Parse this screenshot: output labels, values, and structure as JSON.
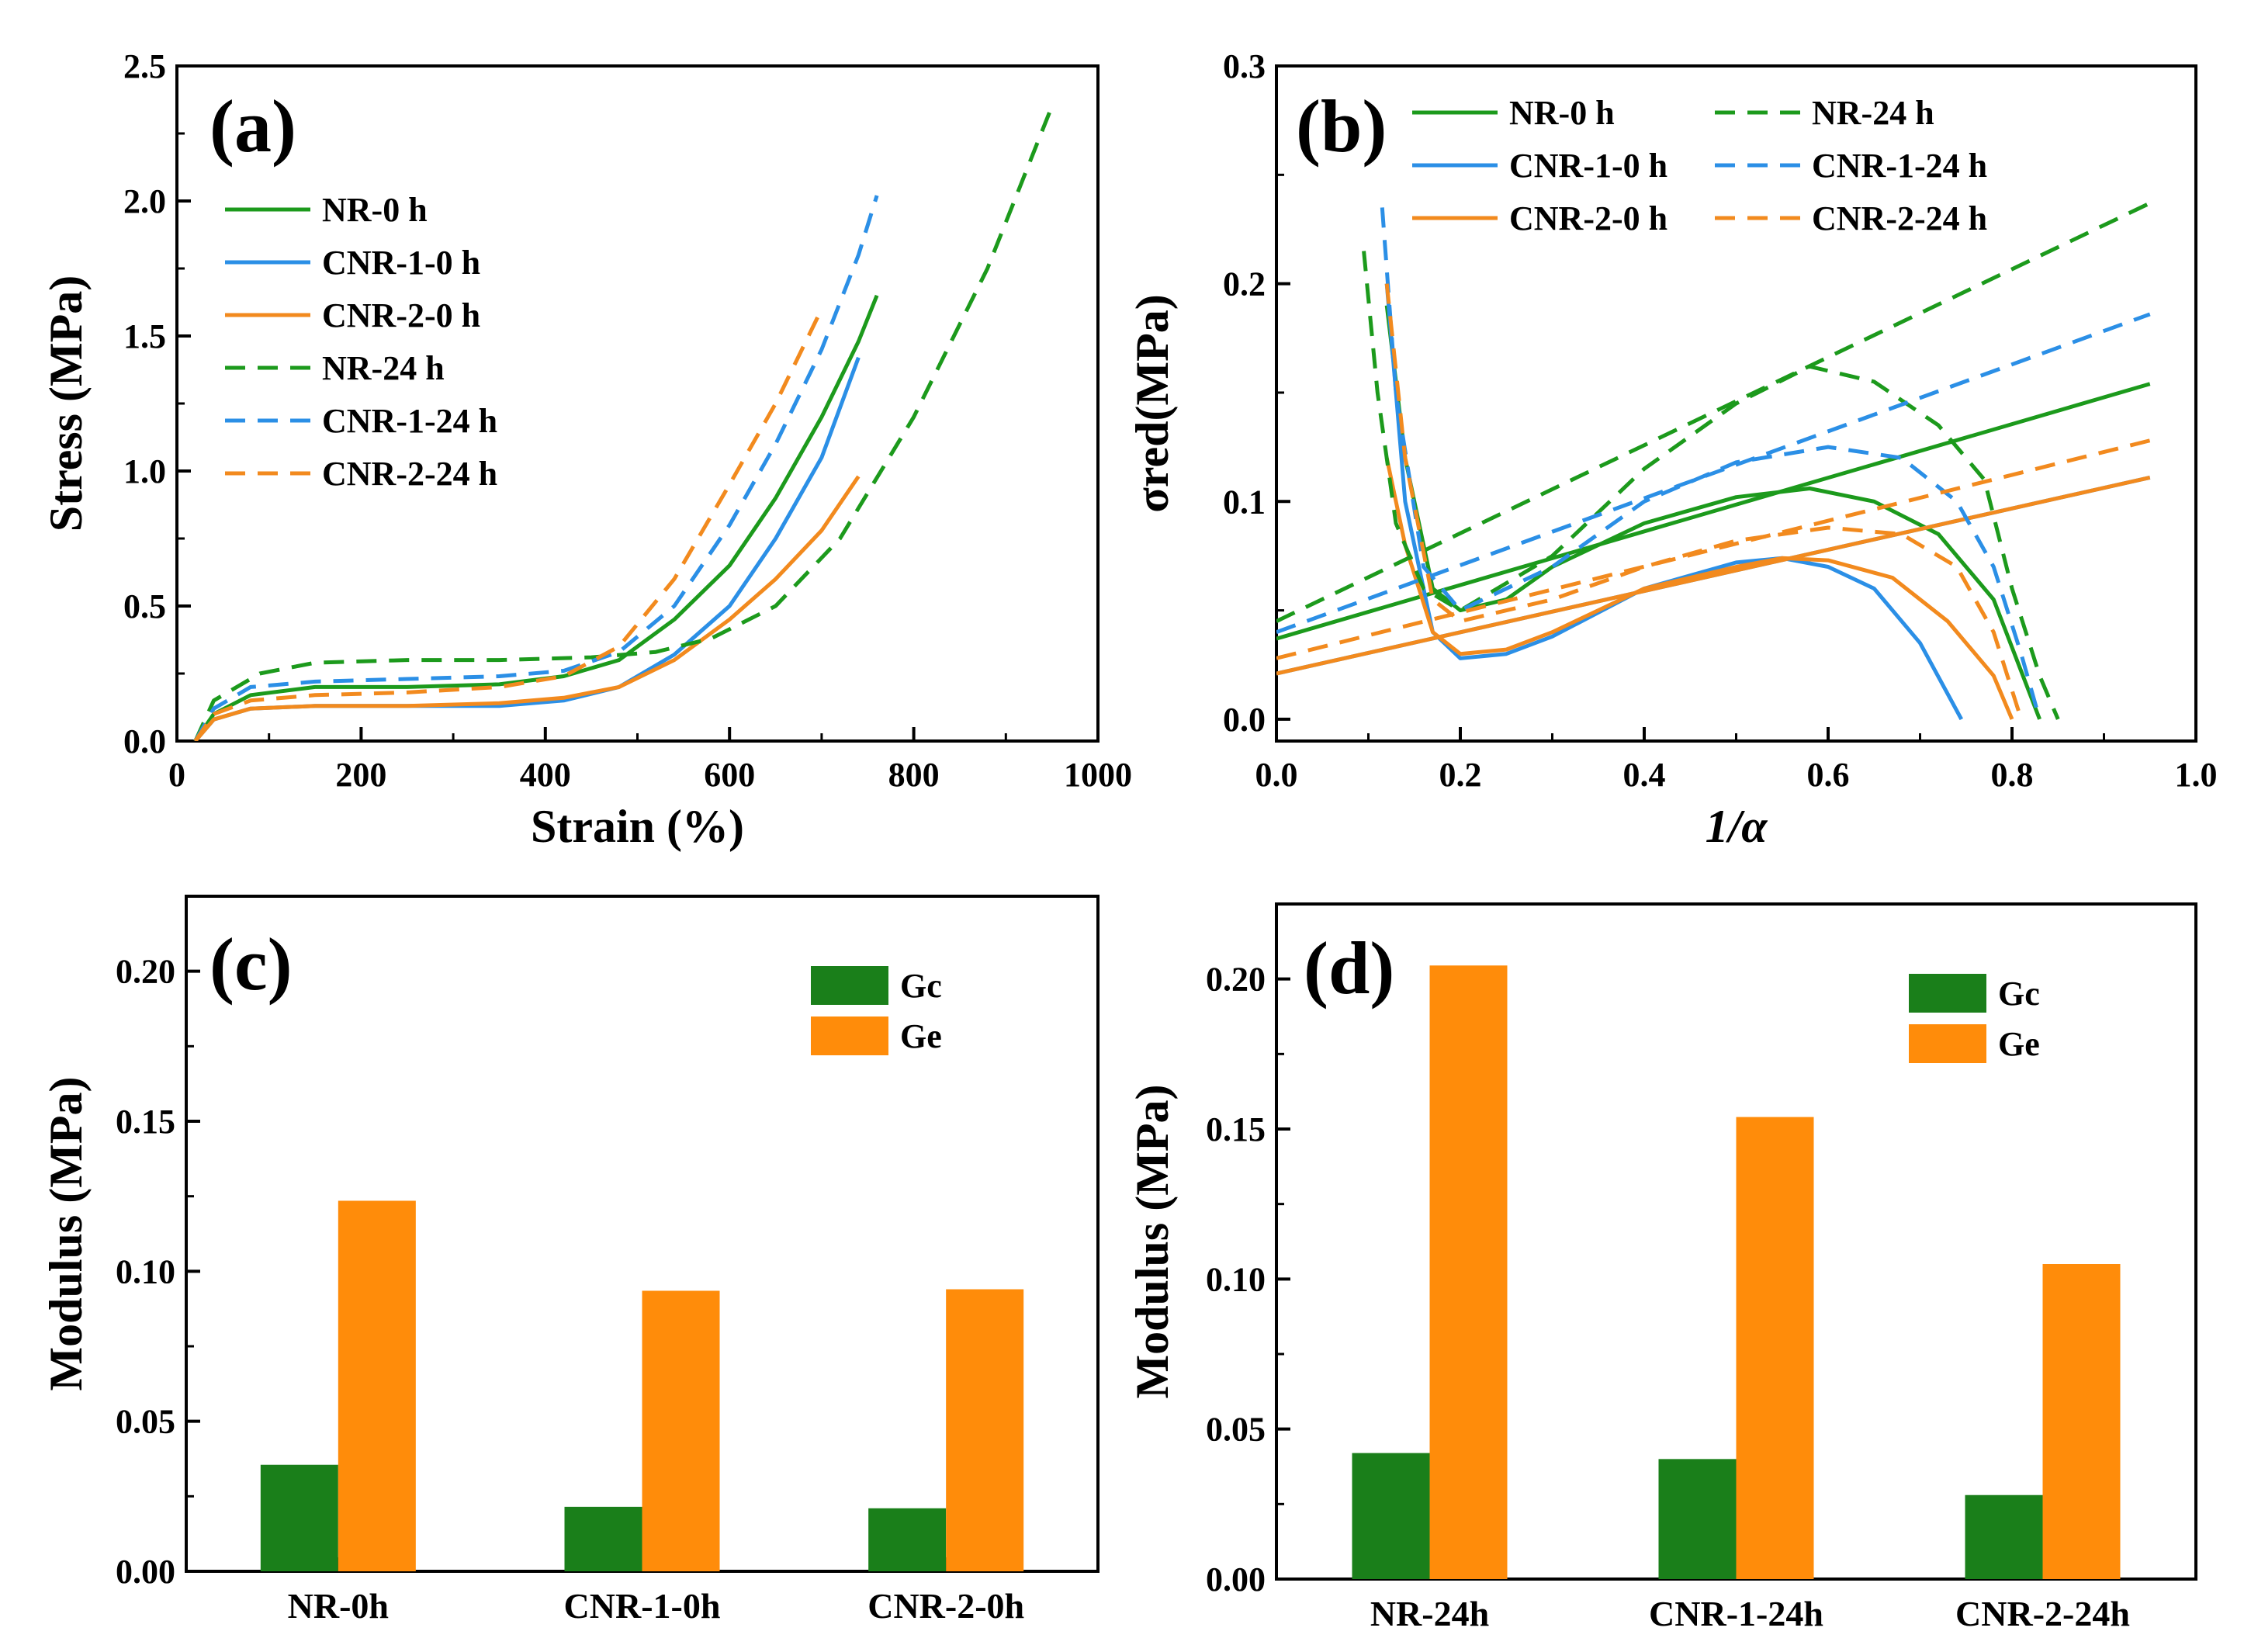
{
  "chart_data": [
    {
      "panel": "(a)",
      "type": "line",
      "xlabel": "Strain (%)",
      "ylabel": "Stress (MPa)",
      "xlim": [
        0,
        1000
      ],
      "ylim": [
        0,
        2.5
      ],
      "xticks": [
        "0",
        "200",
        "400",
        "600",
        "800",
        "1000"
      ],
      "yticks": [
        "0.0",
        "0.5",
        "1.0",
        "1.5",
        "2.0",
        "2.5"
      ],
      "legend_position": "upper-left",
      "series": [
        {
          "name": "NR-0 h",
          "color": "#1c9a1c",
          "dash": "solid",
          "x": [
            20,
            40,
            80,
            150,
            250,
            350,
            420,
            480,
            540,
            600,
            650,
            700,
            740,
            760
          ],
          "y": [
            0,
            0.1,
            0.17,
            0.2,
            0.2,
            0.21,
            0.24,
            0.3,
            0.45,
            0.65,
            0.9,
            1.2,
            1.48,
            1.65
          ]
        },
        {
          "name": "CNR-1-0 h",
          "color": "#2b8fe6",
          "dash": "solid",
          "x": [
            20,
            40,
            80,
            150,
            250,
            350,
            420,
            480,
            540,
            600,
            650,
            700,
            740
          ],
          "y": [
            0,
            0.08,
            0.12,
            0.13,
            0.13,
            0.13,
            0.15,
            0.2,
            0.32,
            0.5,
            0.75,
            1.05,
            1.42
          ]
        },
        {
          "name": "CNR-2-0 h",
          "color": "#f28a1e",
          "dash": "solid",
          "x": [
            20,
            40,
            80,
            150,
            250,
            350,
            420,
            480,
            540,
            600,
            650,
            700,
            740
          ],
          "y": [
            0,
            0.08,
            0.12,
            0.13,
            0.13,
            0.14,
            0.16,
            0.2,
            0.3,
            0.45,
            0.6,
            0.78,
            0.98
          ]
        },
        {
          "name": "NR-24 h",
          "color": "#1c9a1c",
          "dash": "dashed",
          "x": [
            20,
            40,
            90,
            150,
            250,
            350,
            450,
            520,
            580,
            650,
            720,
            800,
            880,
            950
          ],
          "y": [
            0,
            0.15,
            0.25,
            0.29,
            0.3,
            0.3,
            0.31,
            0.33,
            0.38,
            0.5,
            0.75,
            1.2,
            1.75,
            2.35
          ]
        },
        {
          "name": "CNR-1-24 h",
          "color": "#2b8fe6",
          "dash": "dashed",
          "x": [
            20,
            40,
            80,
            150,
            250,
            350,
            420,
            480,
            540,
            600,
            650,
            700,
            740,
            760
          ],
          "y": [
            0,
            0.12,
            0.2,
            0.22,
            0.23,
            0.24,
            0.26,
            0.33,
            0.5,
            0.8,
            1.1,
            1.45,
            1.8,
            2.02
          ]
        },
        {
          "name": "CNR-2-24 h",
          "color": "#f28a1e",
          "dash": "dashed",
          "x": [
            20,
            40,
            80,
            150,
            250,
            350,
            420,
            480,
            540,
            600,
            650,
            700
          ],
          "y": [
            0,
            0.1,
            0.15,
            0.17,
            0.18,
            0.2,
            0.24,
            0.35,
            0.6,
            0.95,
            1.25,
            1.6
          ]
        }
      ]
    },
    {
      "panel": "(b)",
      "type": "line",
      "xlabel": "1/α",
      "ylabel": "σred(MPa)",
      "xlim": [
        0,
        1.0
      ],
      "ylim": [
        -0.01,
        0.3
      ],
      "xticks": [
        "0.0",
        "0.2",
        "0.4",
        "0.6",
        "0.8",
        "1.0"
      ],
      "yticks": [
        "0.0",
        "0.1",
        "0.2",
        "0.3"
      ],
      "legend_position": "top",
      "series": [
        {
          "name": "NR-0 h",
          "color": "#1c9a1c",
          "dash": "solid",
          "x": [
            0.12,
            0.14,
            0.17,
            0.2,
            0.25,
            0.3,
            0.4,
            0.5,
            0.58,
            0.65,
            0.72,
            0.78,
            0.83
          ],
          "y": [
            0.19,
            0.12,
            0.06,
            0.05,
            0.055,
            0.07,
            0.09,
            0.102,
            0.106,
            0.1,
            0.085,
            0.055,
            0.0
          ],
          "fit": [
            [
              0.0,
              0.037
            ],
            [
              0.95,
              0.154
            ]
          ]
        },
        {
          "name": "CNR-1-0 h",
          "color": "#2b8fe6",
          "dash": "solid",
          "x": [
            0.12,
            0.14,
            0.17,
            0.2,
            0.25,
            0.3,
            0.4,
            0.5,
            0.55,
            0.6,
            0.65,
            0.7,
            0.745
          ],
          "y": [
            0.2,
            0.1,
            0.04,
            0.028,
            0.03,
            0.038,
            0.06,
            0.072,
            0.074,
            0.07,
            0.06,
            0.035,
            0.0
          ],
          "fit": [
            [
              0.0,
              0.021
            ],
            [
              0.95,
              0.111
            ]
          ]
        },
        {
          "name": "CNR-2-0 h",
          "color": "#f28a1e",
          "dash": "solid",
          "x": [
            0.12,
            0.14,
            0.17,
            0.2,
            0.25,
            0.3,
            0.4,
            0.5,
            0.55,
            0.6,
            0.67,
            0.73,
            0.78,
            0.8
          ],
          "y": [
            0.12,
            0.08,
            0.04,
            0.03,
            0.032,
            0.04,
            0.06,
            0.07,
            0.074,
            0.073,
            0.065,
            0.045,
            0.02,
            0.0
          ],
          "fit": [
            [
              0.0,
              0.021
            ],
            [
              0.95,
              0.111
            ]
          ]
        },
        {
          "name": "NR-24 h",
          "color": "#1c9a1c",
          "dash": "dashed",
          "x": [
            0.095,
            0.11,
            0.13,
            0.16,
            0.2,
            0.3,
            0.4,
            0.5,
            0.58,
            0.65,
            0.72,
            0.77,
            0.8,
            0.83,
            0.85
          ],
          "y": [
            0.215,
            0.15,
            0.09,
            0.06,
            0.05,
            0.075,
            0.115,
            0.145,
            0.162,
            0.155,
            0.135,
            0.11,
            0.06,
            0.02,
            0.0
          ],
          "fit": [
            [
              0.0,
              0.045
            ],
            [
              0.95,
              0.237
            ]
          ]
        },
        {
          "name": "CNR-1-24 h",
          "color": "#2b8fe6",
          "dash": "dashed",
          "x": [
            0.115,
            0.13,
            0.16,
            0.2,
            0.3,
            0.4,
            0.5,
            0.6,
            0.68,
            0.74,
            0.78,
            0.81,
            0.83
          ],
          "y": [
            0.235,
            0.15,
            0.07,
            0.05,
            0.07,
            0.1,
            0.118,
            0.125,
            0.12,
            0.1,
            0.07,
            0.03,
            0.0
          ],
          "fit": [
            [
              0.0,
              0.04
            ],
            [
              0.95,
              0.186
            ]
          ]
        },
        {
          "name": "CNR-2-24 h",
          "color": "#f28a1e",
          "dash": "dashed",
          "x": [
            0.12,
            0.14,
            0.17,
            0.2,
            0.3,
            0.4,
            0.5,
            0.6,
            0.68,
            0.74,
            0.78,
            0.81
          ],
          "y": [
            0.2,
            0.12,
            0.055,
            0.045,
            0.055,
            0.07,
            0.082,
            0.088,
            0.085,
            0.07,
            0.04,
            0.0
          ],
          "fit": [
            [
              0.0,
              0.028
            ],
            [
              0.95,
              0.128
            ]
          ]
        }
      ]
    },
    {
      "panel": "(c)",
      "type": "bar",
      "xlabel": "",
      "ylabel": "Modulus (MPa)",
      "ylim": [
        0,
        0.225
      ],
      "yticks": [
        "0.00",
        "0.05",
        "0.10",
        "0.15",
        "0.20"
      ],
      "categories": [
        "NR-0h",
        "CNR-1-0h",
        "CNR-2-0h"
      ],
      "legend_position": "top-right",
      "series": [
        {
          "name": "Gc",
          "color": "#1a7f1a",
          "values": [
            0.0355,
            0.0215,
            0.021
          ]
        },
        {
          "name": "Ge",
          "color": "#ff8c0a",
          "values": [
            0.1235,
            0.0935,
            0.094
          ]
        }
      ]
    },
    {
      "panel": "(d)",
      "type": "bar",
      "xlabel": "",
      "ylabel": "Modulus (MPa)",
      "ylim": [
        0,
        0.225
      ],
      "yticks": [
        "0.00",
        "0.05",
        "0.10",
        "0.15",
        "0.20"
      ],
      "categories": [
        "NR-24h",
        "CNR-1-24h",
        "CNR-2-24h"
      ],
      "legend_position": "top-right",
      "series": [
        {
          "name": "Gc",
          "color": "#1a7f1a",
          "values": [
            0.042,
            0.04,
            0.028
          ]
        },
        {
          "name": "Ge",
          "color": "#ff8c0a",
          "values": [
            0.2045,
            0.154,
            0.105
          ]
        }
      ]
    }
  ]
}
